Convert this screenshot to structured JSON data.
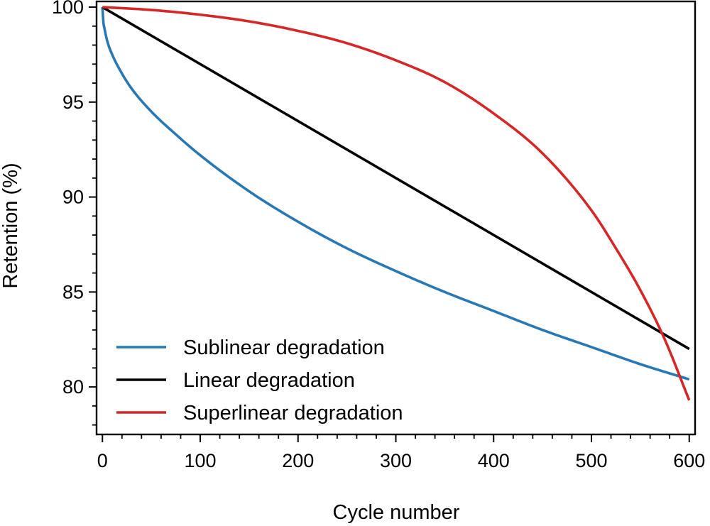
{
  "chart_data": {
    "type": "line",
    "title": "",
    "xlabel": "Cycle number",
    "ylabel": "Retention (%)",
    "xlim": [
      -6,
      606
    ],
    "ylim": [
      77.5,
      100.3
    ],
    "xticks": [
      0,
      100,
      200,
      300,
      400,
      500,
      600
    ],
    "yticks": [
      80,
      85,
      90,
      95,
      100
    ],
    "x_minor_step": 20,
    "y_minor_step": 1,
    "grid": false,
    "legend_position": "lower-left",
    "series": [
      {
        "name": "Sublinear degradation",
        "color": "#2878b5",
        "x": [
          0,
          1,
          2,
          5,
          10,
          20,
          30,
          50,
          75,
          100,
          150,
          200,
          250,
          300,
          350,
          400,
          450,
          500,
          550,
          600
        ],
        "y": [
          100,
          99.2,
          98.9,
          98.2,
          97.5,
          96.5,
          95.7,
          94.5,
          93.3,
          92.2,
          90.3,
          88.7,
          87.3,
          86.1,
          85.0,
          84.0,
          83.0,
          82.1,
          81.2,
          80.4
        ]
      },
      {
        "name": "Linear degradation",
        "color": "#000000",
        "x": [
          0,
          600
        ],
        "y": [
          100,
          82
        ]
      },
      {
        "name": "Superlinear degradation",
        "color": "#d62728",
        "x": [
          0,
          50,
          100,
          150,
          200,
          250,
          300,
          350,
          400,
          450,
          500,
          525,
          550,
          575,
          600
        ],
        "y": [
          100,
          99.85,
          99.6,
          99.25,
          98.75,
          98.1,
          97.2,
          96.05,
          94.4,
          92.3,
          89.3,
          87.3,
          85.1,
          82.5,
          79.3
        ]
      }
    ]
  }
}
